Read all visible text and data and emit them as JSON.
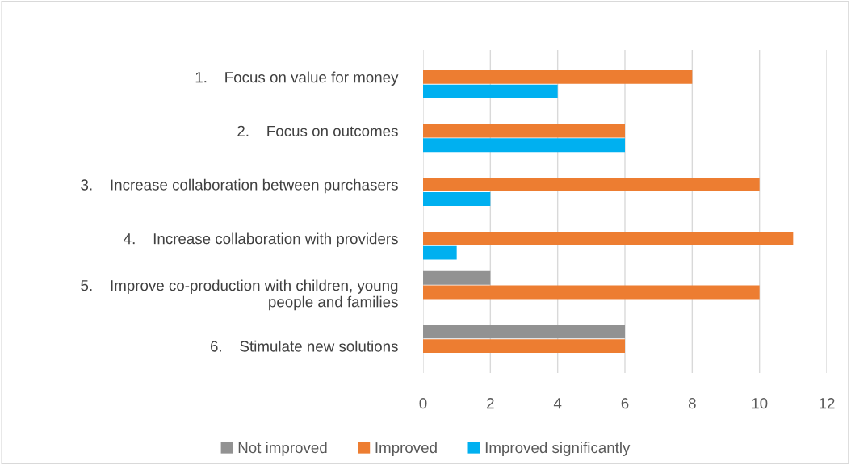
{
  "chart_data": {
    "type": "bar",
    "orientation": "horizontal",
    "categories": [
      "1.    Focus on value for money",
      "2.    Focus on outcomes",
      "3.    Increase collaboration between purchasers",
      "4.    Increase collaboration with providers",
      "5.    Improve co-production with children, young\npeople and families",
      "6.    Stimulate new solutions"
    ],
    "series": [
      {
        "name": "Not improved",
        "color": "#929292",
        "values": [
          null,
          null,
          null,
          null,
          2,
          6
        ]
      },
      {
        "name": "Improved",
        "color": "#ed7d31",
        "values": [
          8,
          6,
          10,
          11,
          10,
          6
        ]
      },
      {
        "name": "Improved significantly",
        "color": "#00b0f0",
        "values": [
          4,
          6,
          2,
          1,
          null,
          null
        ]
      }
    ],
    "xlim": [
      0,
      12
    ],
    "xticks": [
      0,
      2,
      4,
      6,
      8,
      10,
      12
    ],
    "grid": "x",
    "legend": "bottom"
  }
}
